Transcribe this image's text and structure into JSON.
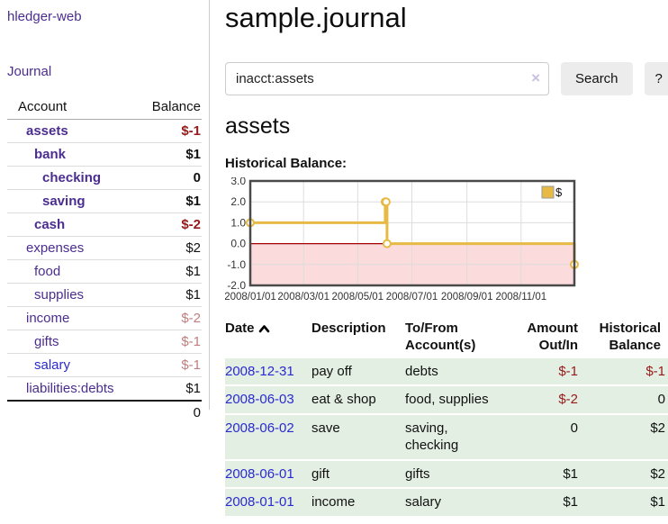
{
  "app": {
    "title": "hledger-web",
    "nav_journal": "Journal"
  },
  "sidebar": {
    "headers": {
      "account": "Account",
      "balance": "Balance"
    },
    "accounts": [
      {
        "name": "assets",
        "indent": 1,
        "bold": true,
        "balance": "$-1",
        "balance_color": "negative"
      },
      {
        "name": "bank",
        "indent": 2,
        "bold": true,
        "balance": "$1",
        "balance_color": "normal"
      },
      {
        "name": "checking",
        "indent": 3,
        "bold": true,
        "balance": "0",
        "balance_color": "normal"
      },
      {
        "name": "saving",
        "indent": 3,
        "bold": true,
        "balance": "$1",
        "balance_color": "normal"
      },
      {
        "name": "cash",
        "indent": 2,
        "bold": true,
        "balance": "$-2",
        "balance_color": "negative"
      },
      {
        "name": "expenses",
        "indent": 1,
        "bold": false,
        "balance": "$2",
        "balance_color": "normal"
      },
      {
        "name": "food",
        "indent": 2,
        "bold": false,
        "balance": "$1",
        "balance_color": "normal"
      },
      {
        "name": "supplies",
        "indent": 2,
        "bold": false,
        "balance": "$1",
        "balance_color": "normal"
      },
      {
        "name": "income",
        "indent": 1,
        "bold": false,
        "balance": "$-2",
        "balance_color": "negative-light"
      },
      {
        "name": "gifts",
        "indent": 2,
        "bold": false,
        "balance": "$-1",
        "balance_color": "negative-light"
      },
      {
        "name": "salary",
        "indent": 2,
        "bold": false,
        "link_color": "blue",
        "balance": "$-1",
        "balance_color": "negative-light"
      },
      {
        "name": "liabilities:debts",
        "indent": 1,
        "bold": false,
        "balance": "$1",
        "balance_color": "normal"
      }
    ],
    "total": "0"
  },
  "header": {
    "title": "sample.journal"
  },
  "search": {
    "value": "inacct:assets",
    "clear_icon": "×",
    "button": "Search",
    "help_button": "?"
  },
  "main": {
    "account_title": "assets",
    "chart_label": "Historical Balance:"
  },
  "chart_data": {
    "type": "line",
    "step": true,
    "title": "Historical Balance",
    "series": [
      {
        "name": "$",
        "points": [
          [
            "2008/01/01",
            1
          ],
          [
            "2008/06/01",
            2
          ],
          [
            "2008/06/02",
            2
          ],
          [
            "2008/06/03",
            0
          ],
          [
            "2008/12/31",
            -1
          ]
        ]
      }
    ],
    "ylim": [
      -2,
      3
    ],
    "yticks": [
      "3.0",
      "2.0",
      "1.0",
      "0.0",
      "-1.0",
      "-2.0"
    ],
    "xticks": [
      "2008/01/01",
      "2008/03/01",
      "2008/05/01",
      "2008/07/01",
      "2008/09/01",
      "2008/11/01"
    ],
    "xmin": "2008/01/01",
    "xmax": "2008/12/31",
    "grid": true,
    "legend": "$",
    "legend_position": "top-right",
    "line_color": "#e7ba45",
    "negative_fill": "#fbdbdb",
    "zero_line_color": "#a00000"
  },
  "register": {
    "headers": {
      "date": "Date",
      "description": "Description",
      "tofrom": "To/From Account(s)",
      "amount": "Amount Out/In",
      "balance": "Historical Balance"
    },
    "rows": [
      {
        "date": "2008-12-31",
        "description": "pay off",
        "accounts": "debts",
        "amount": "$-1",
        "amount_color": "negative",
        "balance": "$-1",
        "balance_color": "negative"
      },
      {
        "date": "2008-06-03",
        "description": "eat & shop",
        "accounts": "food, supplies",
        "amount": "$-2",
        "amount_color": "negative",
        "balance": "0",
        "balance_color": "normal"
      },
      {
        "date": "2008-06-02",
        "description": "save",
        "accounts": "saving,\nchecking",
        "amount": "0",
        "amount_color": "normal",
        "balance": "$2",
        "balance_color": "normal"
      },
      {
        "date": "2008-06-01",
        "description": "gift",
        "accounts": "gifts",
        "amount": "$1",
        "amount_color": "normal",
        "balance": "$2",
        "balance_color": "normal"
      },
      {
        "date": "2008-01-01",
        "description": "income",
        "accounts": "salary",
        "amount": "$1",
        "amount_color": "normal",
        "balance": "$1",
        "balance_color": "normal"
      }
    ]
  },
  "colors": {
    "link_purple": "#4b2d90",
    "link_blue": "#2a2ad0",
    "negative": "#971a1a",
    "negative_light": "#c07e7e",
    "row_green": "#e3efe2"
  }
}
